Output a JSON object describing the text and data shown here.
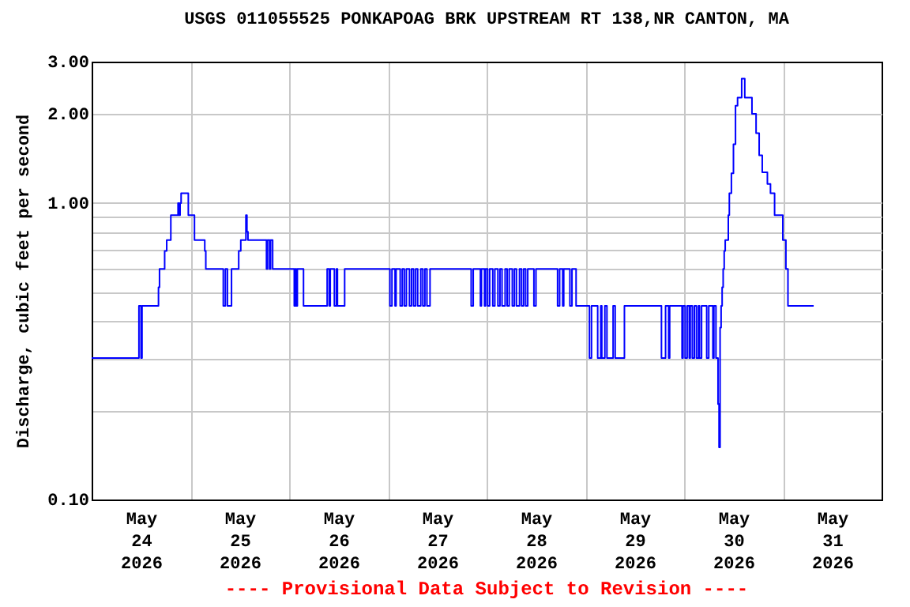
{
  "chart_data": {
    "type": "step",
    "title": "USGS 011055525 PONKAPOAG BRK UPSTREAM RT 138,NR CANTON, MA",
    "ylabel": "Discharge, cubic feet per second",
    "annotations": [
      "---- Provisional Data Subject to Revision ----"
    ],
    "log": "y",
    "grid": true,
    "line_style": "solid",
    "marker": "none",
    "xlim": [
      "2026-05-24",
      "2026-06-01"
    ],
    "xticks": [
      {
        "value": "2026-05-24T12:00",
        "label": "May\n24\n2026"
      },
      {
        "value": "2026-05-25",
        "label": null
      },
      {
        "value": "2026-05-25T12:00",
        "label": "May\n25\n2026"
      },
      {
        "value": "2026-05-26",
        "label": null
      },
      {
        "value": "2026-05-26T12:00",
        "label": "May\n26\n2026"
      },
      {
        "value": "2026-05-27",
        "label": null
      },
      {
        "value": "2026-05-27T12:00",
        "label": "May\n27\n2026"
      },
      {
        "value": "2026-05-28",
        "label": null
      },
      {
        "value": "2026-05-28T12:00",
        "label": "May\n28\n2026"
      },
      {
        "value": "2026-05-29",
        "label": null
      },
      {
        "value": "2026-05-29T12:00",
        "label": "May\n29\n2026"
      },
      {
        "value": "2026-05-30",
        "label": null
      },
      {
        "value": "2026-05-30T12:00",
        "label": "May\n30\n2026"
      },
      {
        "value": "2026-05-31",
        "label": null
      },
      {
        "value": "2026-05-31T12:00",
        "label": "May\n31\n2026"
      }
    ],
    "ylim": [
      0.1,
      3
    ],
    "yticks": [
      {
        "value": 0.1,
        "label": "0.10"
      },
      {
        "value": 0.2,
        "label": null
      },
      {
        "value": 0.3,
        "label": null
      },
      {
        "value": 0.4,
        "label": null
      },
      {
        "value": 0.5,
        "label": null
      },
      {
        "value": 0.6,
        "label": null
      },
      {
        "value": 0.7,
        "label": null
      },
      {
        "value": 0.8,
        "label": null
      },
      {
        "value": 0.9,
        "label": null
      },
      {
        "value": 1,
        "label": "1.00"
      },
      {
        "value": 2,
        "label": "2.00"
      },
      {
        "value": 3,
        "label": "3.00"
      }
    ],
    "series": [
      {
        "color": "#0000ff",
        "x": [
          "2026-05-24T00:00",
          "2026-05-24T11:30",
          "2026-05-24T12:00",
          "2026-05-24T12:15",
          "2026-05-24T16:15",
          "2026-05-24T16:30",
          "2026-05-24T17:45",
          "2026-05-24T18:15",
          "2026-05-24T19:15",
          "2026-05-24T21:00",
          "2026-05-24T21:15",
          "2026-05-24T21:30",
          "2026-05-24T21:45",
          "2026-05-24T23:30",
          "2026-05-25T01:00",
          "2026-05-25T03:30",
          "2026-05-25T03:45",
          "2026-05-25T08:00",
          "2026-05-25T08:30",
          "2026-05-25T09:00",
          "2026-05-25T10:00",
          "2026-05-25T11:45",
          "2026-05-25T12:15",
          "2026-05-25T13:30",
          "2026-05-25T13:45",
          "2026-05-25T14:00",
          "2026-05-25T18:30",
          "2026-05-25T18:45",
          "2026-05-25T19:15",
          "2026-05-25T19:30",
          "2026-05-25T20:00",
          "2026-05-26T01:15",
          "2026-05-26T01:30",
          "2026-05-26T01:45",
          "2026-05-26T02:00",
          "2026-05-26T03:30",
          "2026-05-26T09:15",
          "2026-05-26T09:45",
          "2026-05-26T10:00",
          "2026-05-26T11:00",
          "2026-05-26T11:30",
          "2026-05-26T11:45",
          "2026-05-26T13:30",
          "2026-05-27T00:30",
          "2026-05-27T01:00",
          "2026-05-27T01:45",
          "2026-05-27T02:00",
          "2026-05-27T03:00",
          "2026-05-27T03:30",
          "2026-05-27T04:00",
          "2026-05-27T04:30",
          "2026-05-27T05:15",
          "2026-05-27T05:45",
          "2026-05-27T06:15",
          "2026-05-27T06:45",
          "2026-05-27T07:15",
          "2026-05-27T08:00",
          "2026-05-27T08:30",
          "2026-05-27T09:00",
          "2026-05-27T09:30",
          "2026-05-27T10:15",
          "2026-05-27T20:15",
          "2026-05-27T20:45",
          "2026-05-27T22:30",
          "2026-05-27T22:45",
          "2026-05-27T23:30",
          "2026-05-27T23:45",
          "2026-05-28T00:15",
          "2026-05-28T00:45",
          "2026-05-28T01:30",
          "2026-05-28T02:00",
          "2026-05-28T02:45",
          "2026-05-28T03:15",
          "2026-05-28T03:45",
          "2026-05-28T04:30",
          "2026-05-28T05:00",
          "2026-05-28T05:30",
          "2026-05-28T06:15",
          "2026-05-28T06:45",
          "2026-05-28T07:15",
          "2026-05-28T08:00",
          "2026-05-28T08:30",
          "2026-05-28T09:00",
          "2026-05-28T09:30",
          "2026-05-28T10:00",
          "2026-05-28T11:30",
          "2026-05-28T12:00",
          "2026-05-28T17:15",
          "2026-05-28T17:45",
          "2026-05-28T18:30",
          "2026-05-28T18:45",
          "2026-05-28T20:15",
          "2026-05-28T20:45",
          "2026-05-28T21:45",
          "2026-05-29T01:00",
          "2026-05-29T01:30",
          "2026-05-29T03:00",
          "2026-05-29T03:45",
          "2026-05-29T04:00",
          "2026-05-29T04:45",
          "2026-05-29T05:15",
          "2026-05-29T06:45",
          "2026-05-29T07:15",
          "2026-05-29T09:30",
          "2026-05-29T18:30",
          "2026-05-29T19:30",
          "2026-05-29T20:15",
          "2026-05-29T20:30",
          "2026-05-29T23:30",
          "2026-05-29T23:45",
          "2026-05-30T00:15",
          "2026-05-30T00:45",
          "2026-05-30T01:15",
          "2026-05-30T01:30",
          "2026-05-30T02:00",
          "2026-05-30T02:30",
          "2026-05-30T03:00",
          "2026-05-30T03:30",
          "2026-05-30T03:45",
          "2026-05-30T04:15",
          "2026-05-30T05:30",
          "2026-05-30T06:00",
          "2026-05-30T07:00",
          "2026-05-30T07:15",
          "2026-05-30T07:45",
          "2026-05-30T08:15",
          "2026-05-30T08:30",
          "2026-05-30T08:45",
          "2026-05-30T09:00",
          "2026-05-30T09:15",
          "2026-05-30T09:30",
          "2026-05-30T09:45",
          "2026-05-30T10:00",
          "2026-05-30T10:45",
          "2026-05-30T11:00",
          "2026-05-30T11:30",
          "2026-05-30T12:00",
          "2026-05-30T12:30",
          "2026-05-30T13:00",
          "2026-05-30T14:00",
          "2026-05-30T14:45",
          "2026-05-30T16:30",
          "2026-05-30T17:30",
          "2026-05-30T18:15",
          "2026-05-30T19:00",
          "2026-05-30T20:15",
          "2026-05-30T21:00",
          "2026-05-30T22:00",
          "2026-05-31T00:00",
          "2026-05-31T00:45",
          "2026-05-31T01:15",
          "2026-05-31T07:30"
        ],
        "values": [
          0.3,
          0.45,
          0.3,
          0.45,
          0.52,
          0.6,
          0.69,
          0.75,
          0.91,
          1.0,
          0.91,
          1.0,
          1.08,
          0.91,
          0.75,
          0.69,
          0.6,
          0.45,
          0.6,
          0.45,
          0.6,
          0.69,
          0.75,
          0.91,
          0.8,
          0.75,
          0.6,
          0.75,
          0.6,
          0.75,
          0.6,
          0.45,
          0.6,
          0.45,
          0.6,
          0.45,
          0.6,
          0.45,
          0.6,
          0.45,
          0.6,
          0.45,
          0.6,
          0.45,
          0.6,
          0.45,
          0.6,
          0.45,
          0.6,
          0.45,
          0.6,
          0.45,
          0.6,
          0.45,
          0.6,
          0.45,
          0.6,
          0.45,
          0.6,
          0.45,
          0.6,
          0.45,
          0.6,
          0.45,
          0.6,
          0.45,
          0.6,
          0.45,
          0.6,
          0.45,
          0.6,
          0.45,
          0.6,
          0.45,
          0.6,
          0.45,
          0.6,
          0.45,
          0.6,
          0.45,
          0.6,
          0.45,
          0.6,
          0.45,
          0.6,
          0.45,
          0.6,
          0.45,
          0.6,
          0.45,
          0.6,
          0.45,
          0.6,
          0.45,
          0.3,
          0.45,
          0.3,
          0.45,
          0.3,
          0.45,
          0.3,
          0.45,
          0.3,
          0.45,
          0.3,
          0.45,
          0.3,
          0.45,
          0.3,
          0.45,
          0.3,
          0.45,
          0.3,
          0.45,
          0.3,
          0.45,
          0.3,
          0.45,
          0.3,
          0.45,
          0.3,
          0.45,
          0.3,
          0.45,
          0.3,
          0.21,
          0.15,
          0.38,
          0.45,
          0.52,
          0.6,
          0.69,
          0.75,
          0.91,
          1.08,
          1.26,
          1.58,
          2.13,
          2.27,
          2.63,
          2.27,
          2.0,
          1.72,
          1.45,
          1.27,
          1.16,
          1.08,
          0.91,
          0.75,
          0.6,
          0.45,
          0.45
        ]
      }
    ]
  }
}
